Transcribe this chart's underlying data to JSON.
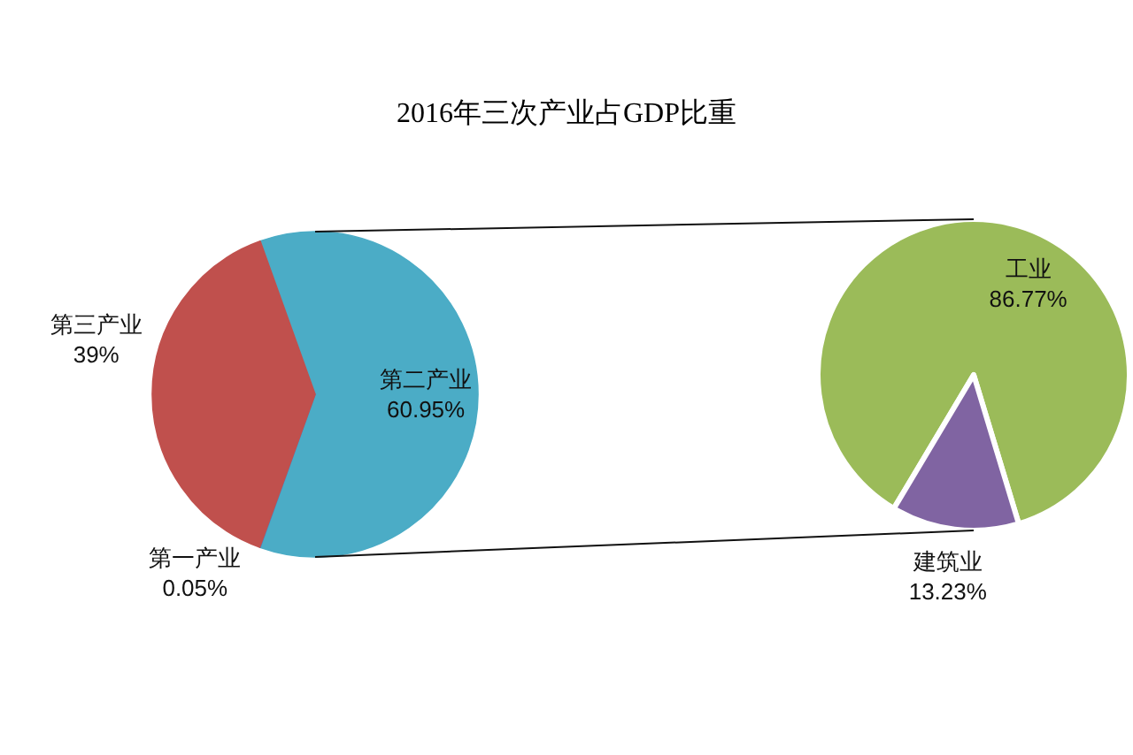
{
  "chart_data": [
    {
      "type": "pie",
      "title": "2016年三次产业占GDP比重",
      "categories": [
        "第二产业",
        "第一产业",
        "第三产业"
      ],
      "values": [
        60.95,
        0.05,
        39
      ],
      "colors": [
        "#4bacc6",
        "#4f81bd",
        "#c0504d"
      ],
      "value_labels": [
        "60.95%",
        "0.05%",
        "39%"
      ]
    },
    {
      "type": "pie",
      "categories": [
        "工业",
        "建筑业"
      ],
      "values": [
        86.77,
        13.23
      ],
      "colors": [
        "#9bbb59",
        "#8064a2"
      ],
      "value_labels": [
        "86.77%",
        "13.23%"
      ]
    }
  ]
}
